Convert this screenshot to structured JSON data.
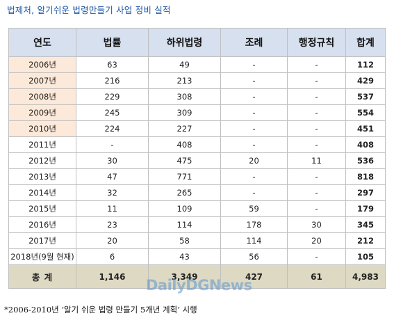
{
  "title": "법제처, 알기쉬운 법령만들기 사업 정비 실적",
  "headers": [
    "연도",
    "법률",
    "하위법령",
    "조례",
    "행정규칙",
    "합계"
  ],
  "rows": [
    {
      "year": "2006년",
      "law": "63",
      "sub": "49",
      "ordinance": "-",
      "admin": "-",
      "total": "112",
      "hl": true
    },
    {
      "year": "2007년",
      "law": "216",
      "sub": "213",
      "ordinance": "-",
      "admin": "-",
      "total": "429",
      "hl": true
    },
    {
      "year": "2008년",
      "law": "229",
      "sub": "308",
      "ordinance": "-",
      "admin": "-",
      "total": "537",
      "hl": true
    },
    {
      "year": "2009년",
      "law": "245",
      "sub": "309",
      "ordinance": "-",
      "admin": "-",
      "total": "554",
      "hl": true
    },
    {
      "year": "2010년",
      "law": "224",
      "sub": "227",
      "ordinance": "-",
      "admin": "-",
      "total": "451",
      "hl": true
    },
    {
      "year": "2011년",
      "law": "-",
      "sub": "408",
      "ordinance": "-",
      "admin": "-",
      "total": "408",
      "hl": false
    },
    {
      "year": "2012년",
      "law": "30",
      "sub": "475",
      "ordinance": "20",
      "admin": "11",
      "total": "536",
      "hl": false
    },
    {
      "year": "2013년",
      "law": "47",
      "sub": "771",
      "ordinance": "-",
      "admin": "-",
      "total": "818",
      "hl": false
    },
    {
      "year": "2014년",
      "law": "32",
      "sub": "265",
      "ordinance": "-",
      "admin": "-",
      "total": "297",
      "hl": false
    },
    {
      "year": "2015년",
      "law": "11",
      "sub": "109",
      "ordinance": "59",
      "admin": "-",
      "total": "179",
      "hl": false
    },
    {
      "year": "2016년",
      "law": "23",
      "sub": "114",
      "ordinance": "178",
      "admin": "30",
      "total": "345",
      "hl": false
    },
    {
      "year": "2017년",
      "law": "20",
      "sub": "58",
      "ordinance": "114",
      "admin": "20",
      "total": "212",
      "hl": false
    },
    {
      "year": "2018년(9월 현재)",
      "law": "6",
      "sub": "43",
      "ordinance": "56",
      "admin": "-",
      "total": "105",
      "hl": false
    }
  ],
  "total_row": {
    "label": "총    계",
    "law": "1,146",
    "sub": "3,349",
    "ordinance": "427",
    "admin": "61",
    "total": "4,983"
  },
  "footnote": "*2006-2010년  ‘알기 쉬운 법령 만들기 5개년 계획’ 시행",
  "watermark": "DailyDGNews"
}
